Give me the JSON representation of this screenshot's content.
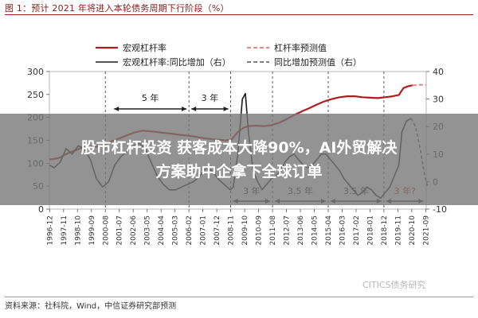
{
  "header": {
    "title": "图 1：预计 2021 年将进入本轮债务周期下行阶段（%）"
  },
  "footer": {
    "source": "资料来源：社科院，Wind，中信证券研究部预测"
  },
  "watermark": {
    "text": "CITICS债务研究"
  },
  "banner": {
    "line1": "股市杠杆投资 获客成本大降90%，AI外贸解决",
    "line2": "方案助中企拿下全球订单",
    "background": "#7a7a7a"
  },
  "colors": {
    "leverage": "#b01c1c",
    "yoy": "#1a1a1a",
    "forecast_leverage": "#e58c8c",
    "forecast_yoy": "#555555"
  },
  "chart_data": {
    "type": "line",
    "legend": [
      {
        "name": "宏观杠杆率",
        "style": "solid",
        "color": "#b01c1c"
      },
      {
        "name": "杠杆率预测值",
        "style": "dashed",
        "color": "#e58c8c"
      },
      {
        "name": "宏观杠杆率:同比增加（右）",
        "style": "solid",
        "color": "#1a1a1a"
      },
      {
        "name": "同比增加预测值（右）",
        "style": "dashed",
        "color": "#555555"
      }
    ],
    "legend_placement": "top",
    "x_ticks": [
      "1996-12",
      "1997-11",
      "1998-10",
      "1999-09",
      "2000-08",
      "2001-07",
      "2002-06",
      "2003-05",
      "2004-04",
      "2005-03",
      "2006-02",
      "2007-01",
      "2007-12",
      "2008-11",
      "2009-10",
      "2010-09",
      "2011-08",
      "2012-07",
      "2013-06",
      "2014-05",
      "2015-04",
      "2016-03",
      "2017-02",
      "2018-01",
      "2018-12",
      "2019-11",
      "2020-10",
      "2021-09"
    ],
    "y_left": {
      "ticks": [
        0,
        50,
        100,
        150,
        200,
        250,
        300
      ],
      "range": [
        0,
        300
      ]
    },
    "y_right": {
      "ticks": [
        -10,
        0,
        10,
        20,
        30,
        40
      ],
      "range": [
        -10,
        40
      ]
    },
    "cycle_dividers": [
      "2000-08",
      "2006-02",
      "2008-11",
      "2011-08",
      "2015-04",
      "2018-12"
    ],
    "cycle_annotations": [
      {
        "label": "5 年",
        "from": "2001-01",
        "to": "2006-02"
      },
      {
        "label": "3 年",
        "from": "2006-02",
        "to": "2008-11"
      },
      {
        "label": "3 年",
        "from": "2008-11",
        "to": "2011-08"
      },
      {
        "label": "3.5 年",
        "from": "2011-08",
        "to": "2015-04"
      },
      {
        "label": "3.5 年",
        "from": "2015-04",
        "to": "2018-12"
      },
      {
        "label": "3 年?",
        "from": "2018-12",
        "to": "2021-09"
      }
    ],
    "series": [
      {
        "name": "宏观杠杆率",
        "axis": "left",
        "x": [
          1996.9,
          1997.5,
          1998.0,
          1998.5,
          1999.0,
          1999.5,
          2000.0,
          2000.5,
          2001.0,
          2001.5,
          2002.0,
          2002.5,
          2003.0,
          2003.5,
          2004.0,
          2004.5,
          2005.0,
          2005.5,
          2006.0,
          2006.5,
          2007.0,
          2007.5,
          2008.0,
          2008.5,
          2008.9,
          2009.3,
          2009.7,
          2010.0,
          2010.5,
          2011.0,
          2011.5,
          2012.0,
          2012.5,
          2013.0,
          2013.5,
          2014.0,
          2014.5,
          2015.0,
          2015.5,
          2016.0,
          2016.5,
          2017.0,
          2017.5,
          2018.0,
          2018.5,
          2019.0,
          2019.5,
          2019.9,
          2020.2,
          2020.5,
          2020.8
        ],
        "y": [
          108,
          111,
          120,
          127,
          133,
          137,
          136,
          140,
          148,
          154,
          161,
          167,
          171,
          170,
          168,
          166,
          164,
          162,
          160,
          158,
          155,
          153,
          151,
          150,
          152,
          168,
          178,
          181,
          182,
          181,
          183,
          188,
          196,
          205,
          213,
          220,
          228,
          235,
          240,
          244,
          246,
          246,
          244,
          243,
          242,
          244,
          246,
          249,
          264,
          268,
          270
        ]
      },
      {
        "name": "杠杆率预测值",
        "axis": "left",
        "x": [
          2020.8,
          2021.2,
          2021.7
        ],
        "y": [
          270,
          271,
          271
        ]
      },
      {
        "name": "宏观杠杆率:同比增加（右）",
        "axis": "right",
        "x": [
          1996.9,
          1997.2,
          1997.6,
          1998.0,
          1998.4,
          1998.8,
          1999.2,
          1999.6,
          2000.0,
          2000.4,
          2000.8,
          2001.2,
          2001.6,
          2002.0,
          2002.4,
          2002.8,
          2003.2,
          2003.6,
          2004.0,
          2004.4,
          2004.8,
          2005.2,
          2005.6,
          2006.0,
          2006.4,
          2006.8,
          2007.2,
          2007.6,
          2008.0,
          2008.4,
          2008.8,
          2009.0,
          2009.3,
          2009.6,
          2009.8,
          2010.0,
          2010.3,
          2010.6,
          2010.9,
          2011.2,
          2011.5,
          2011.8,
          2012.1,
          2012.4,
          2012.7,
          2013.0,
          2013.3,
          2013.6,
          2013.9,
          2014.2,
          2014.5,
          2014.8,
          2015.1,
          2015.4,
          2015.7,
          2016.0,
          2016.3,
          2016.6,
          2016.9,
          2017.2,
          2017.5,
          2017.8,
          2018.1,
          2018.4,
          2018.7,
          2019.0,
          2019.3,
          2019.6,
          2019.9,
          2020.1,
          2020.4,
          2020.7
        ],
        "y": [
          6,
          5,
          7,
          12,
          10,
          13,
          12,
          8,
          1,
          -2,
          0,
          6,
          9,
          11,
          13,
          14,
          12,
          7,
          2,
          -1,
          -3,
          -3,
          -2,
          -1,
          0,
          2,
          5,
          4,
          1,
          -1,
          -3,
          -2,
          10,
          30,
          32,
          18,
          4,
          0,
          -3,
          -1,
          1,
          2,
          4,
          7,
          9,
          10,
          8,
          6,
          5,
          6,
          8,
          10,
          10,
          8,
          6,
          4,
          1,
          -1,
          -3,
          -5,
          -4,
          -2,
          -3,
          -5,
          -6,
          -4,
          -2,
          2,
          6,
          18,
          22,
          23
        ]
      },
      {
        "name": "同比增加预测值（右）",
        "axis": "right",
        "x": [
          2020.7,
          2021.0,
          2021.3,
          2021.6,
          2021.8
        ],
        "y": [
          23,
          20,
          12,
          2,
          -2
        ]
      }
    ]
  }
}
